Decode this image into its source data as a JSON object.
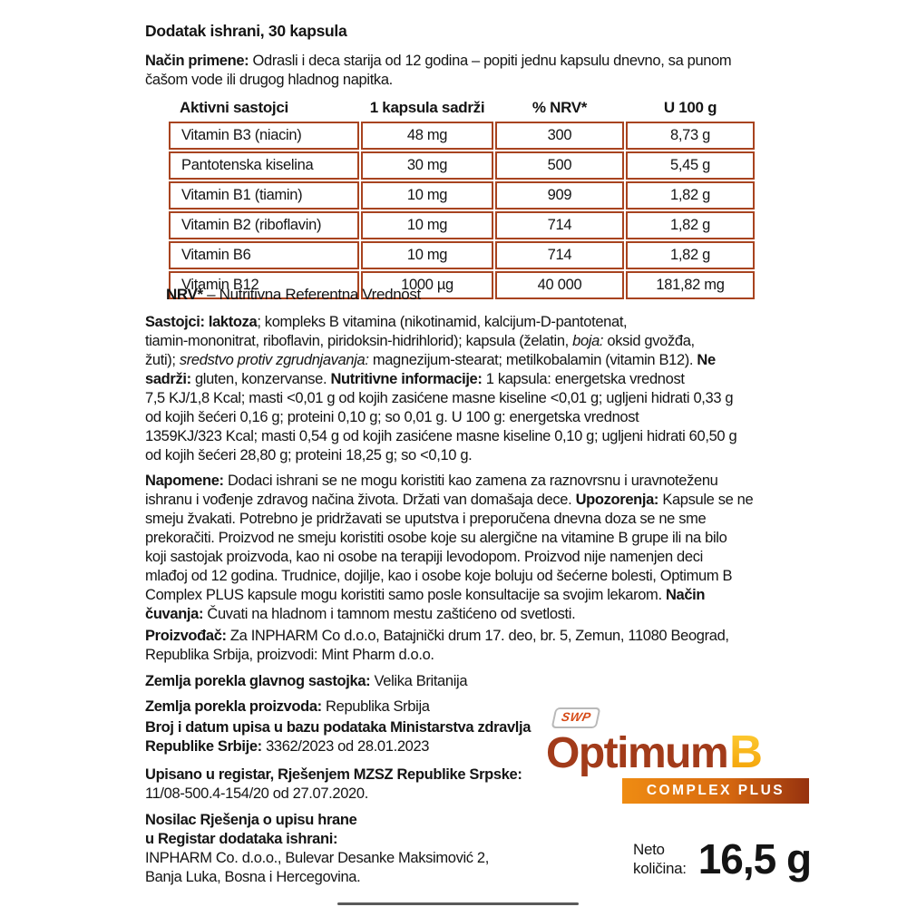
{
  "title": "Dodatak ishrani, 30 kapsula",
  "table": {
    "headers": [
      "Aktivni sastojci",
      "1 kapsula sadrži",
      "% NRV*",
      "U 100 g"
    ],
    "rows": [
      [
        "Vitamin B3 (niacin)",
        "48 mg",
        "300",
        "8,73 g"
      ],
      [
        "Pantotenska kiselina",
        "30 mg",
        "500",
        "5,45 g"
      ],
      [
        "Vitamin B1 (tiamin)",
        "10 mg",
        "909",
        "1,82 g"
      ],
      [
        "Vitamin B2 (riboflavin)",
        "10 mg",
        "714",
        "1,82 g"
      ],
      [
        "Vitamin B6",
        "10 mg",
        "714",
        "1,82 g"
      ],
      [
        "Vitamin B12",
        "1000 µg",
        "40 000",
        "181,82 mg"
      ]
    ]
  },
  "sections": {
    "usage": [
      {
        "t": "Način primene: ",
        "s": "b"
      },
      {
        "t": "Odrasli i deca starija od 12 godina – popiti jednu kapsulu dnevno, sa punom\nčašom vode ili drugog hladnog napitka.",
        "s": ""
      }
    ],
    "footnote": [
      {
        "t": "NRV*",
        "s": "b"
      },
      {
        "t": " – Nutritivna Referentna Vrednost",
        "s": ""
      }
    ],
    "ingredients": [
      {
        "t": "Sastojci: laktoza",
        "s": "b"
      },
      {
        "t": "; kompleks B vitamina (nikotinamid, kalcijum-D-pantotenat,\ntiamin-mononitrat, riboflavin, piridoksin-hidrihlorid); kapsula (želatin, ",
        "s": ""
      },
      {
        "t": "boja:",
        "s": "i"
      },
      {
        "t": " oksid gvožđa,\nžuti); ",
        "s": ""
      },
      {
        "t": "sredstvo protiv zgrudnjavanja:",
        "s": "i"
      },
      {
        "t": " magnezijum-stearat; metilkobalamin (vitamin B12). ",
        "s": ""
      },
      {
        "t": "Ne\nsadrži:",
        "s": "b"
      },
      {
        "t": " gluten, konzervanse. ",
        "s": ""
      },
      {
        "t": "Nutritivne informacije:",
        "s": "b"
      },
      {
        "t": " 1 kapsula: energetska vrednost\n7,5 KJ/1,8 Kcal; masti <0,01 g od kojih zasićene masne kiseline <0,01 g; ugljeni hidrati 0,33 g\nod kojih šećeri 0,16 g; proteini 0,10 g; so 0,01 g. U 100 g: energetska vrednost\n1359KJ/323 Kcal; masti 0,54 g od kojih zasićene masne kiseline 0,10 g; ugljeni hidrati 60,50 g\nod kojih šećeri 28,80 g; proteini 18,25 g; so <0,10 g.",
        "s": ""
      }
    ],
    "notes": [
      {
        "t": "Napomene: ",
        "s": "b"
      },
      {
        "t": "Dodaci ishrani se ne mogu koristiti kao zamena za raznovrsnu i uravnoteženu\nishranu i vođenje zdravog načina života. Držati van domašaja dece. ",
        "s": ""
      },
      {
        "t": "Upozorenja: ",
        "s": "b"
      },
      {
        "t": "Kapsule se ne\nsmeju žvakati. Potrebno je pridržavati se uputstva i preporučena dnevna doza se ne sme\nprekoračiti. Proizvod ne smeju koristiti osobe koje su alergične na vitamine B grupe ili na bilo\nkoji sastojak proizvoda, kao ni osobe na terapiji levodopom.  Proizvod nije namenjen deci\nmlađoj od 12 godina. Trudnice, dojilje, kao i osobe koje boluju od šećerne bolesti, Optimum B\nComplex PLUS kapsule mogu koristiti samo posle konsultacije sa svojim lekarom. ",
        "s": ""
      },
      {
        "t": "Način\nčuvanja:",
        "s": "b"
      },
      {
        "t": " Čuvati na hladnom i tamnom mestu zaštićeno od svetlosti.",
        "s": ""
      }
    ],
    "manufacturer": [
      {
        "t": "Proizvođač: ",
        "s": "b"
      },
      {
        "t": "Za INPHARM  Co d.o.o, Batajnički drum 17. deo, br. 5, Zemun, 11080 Beograd,\nRepublika Srbija, proizvodi: Mint Pharm d.o.o.",
        "s": ""
      }
    ],
    "origin_ingredient": [
      {
        "t": "Zemlja porekla glavnog sastojka: ",
        "s": "b"
      },
      {
        "t": "Velika Britanija",
        "s": ""
      }
    ],
    "origin_product": [
      {
        "t": "Zemlja porekla proizvoda: ",
        "s": "b"
      },
      {
        "t": "Republika Srbija",
        "s": ""
      }
    ],
    "registry_serbia": [
      {
        "t": "Broj i datum upisa u bazu podataka Ministarstva zdravlja\nRepublike Srbije: ",
        "s": "b"
      },
      {
        "t": "3362/2023 od 28.01.2023",
        "s": ""
      }
    ],
    "registry_srpska": [
      {
        "t": "Upisano u registar, Rješenjem MZSZ Republike Srpske:",
        "s": "b"
      },
      {
        "t": "\n11/08-500.4-154/20 od 27.07.2020.",
        "s": ""
      }
    ],
    "holder": [
      {
        "t": "Nosilac Rješenja o upisu hrane\nu Registar dodataka ishrani:",
        "s": "b"
      },
      {
        "t": "\nINPHARM Co. d.o.o., Bulevar Desanke Maksimović 2,\nBanja Luka, Bosna i Hercegovina.",
        "s": ""
      }
    ]
  },
  "brand": {
    "swp": "SWP",
    "name_main": "Optimum",
    "name_b": "B",
    "banner": "COMPLEX PLUS"
  },
  "net_quantity": {
    "label": "Neto\nkoličina:",
    "value": "16,5 g"
  },
  "colors": {
    "table_border": "#a8431f",
    "brand_red": "#a23b1a",
    "brand_gold_1": "#f29c00",
    "brand_gold_2": "#ffd23a",
    "banner_from": "#ef8c12",
    "banner_mid": "#d86a10",
    "banner_to": "#96320f",
    "swp_red": "#d64a16"
  }
}
